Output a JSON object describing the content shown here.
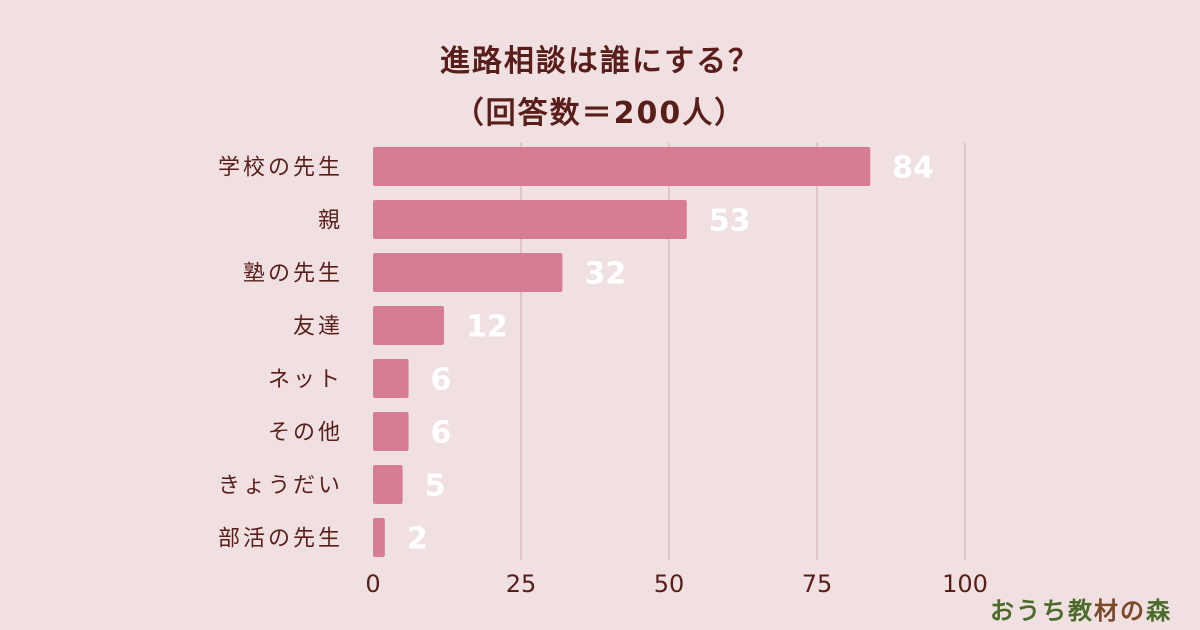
{
  "colors": {
    "background": "#f0e0e1",
    "bar": "#d67d93",
    "text": "#5a1e1a",
    "value_label": "#ffffff",
    "gridline": "#cfa8ac"
  },
  "chart_data": {
    "type": "bar",
    "orientation": "horizontal",
    "title": "進路相談は誰にする？",
    "subtitle": "（回答数＝200人）",
    "categories": [
      "学校の先生",
      "親",
      "塾の先生",
      "友達",
      "ネット",
      "その他",
      "きょうだい",
      "部活の先生"
    ],
    "values": [
      84,
      53,
      32,
      12,
      6,
      6,
      5,
      2
    ],
    "xlim": [
      0,
      100
    ],
    "xticks": [
      0,
      25,
      50,
      75,
      100
    ],
    "grid": "vertical",
    "legend": "none"
  },
  "watermark": {
    "text": "おうち教材の森",
    "char_colors": [
      "#4a6b2a",
      "#4a6b2a",
      "#4a6b2a",
      "#4a6b2a",
      "#7a4a2a",
      "#7a4a2a",
      "#4a6b2a"
    ]
  }
}
